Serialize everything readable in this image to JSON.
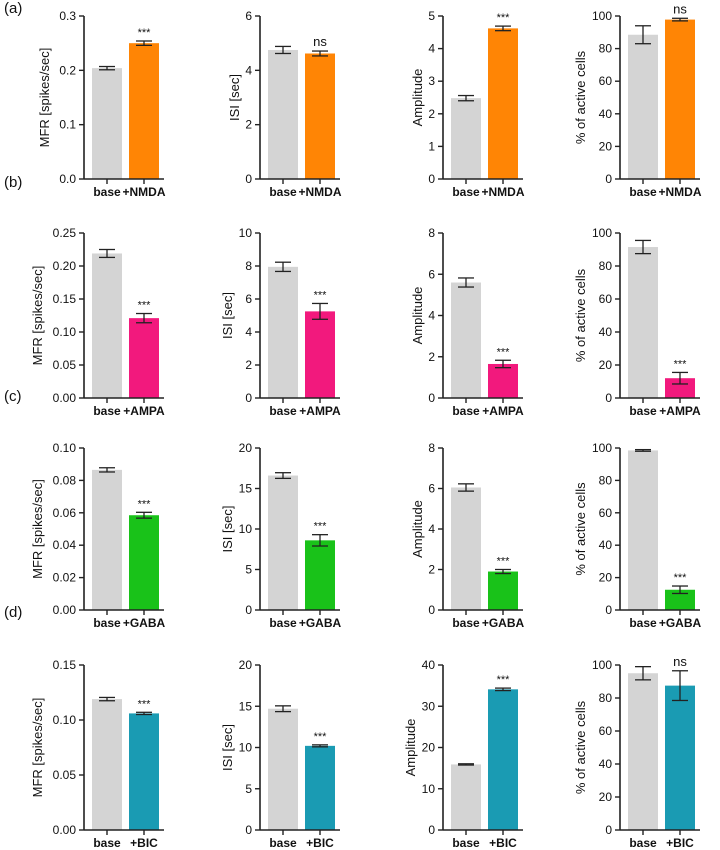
{
  "colors": {
    "base": "#d4d4d4",
    "NMDA": "#ff8505",
    "AMPA": "#f2197d",
    "GABA": "#19c219",
    "BIC": "#1a9bb3",
    "axis": "#222222"
  },
  "rows": [
    {
      "label": "(a)",
      "color_key": "NMDA"
    },
    {
      "label": "(b)",
      "color_key": "AMPA"
    },
    {
      "label": "(c)",
      "color_key": "GABA"
    },
    {
      "label": "(d)",
      "color_key": "BIC"
    }
  ],
  "chart_data": [
    {
      "type": "bar",
      "row": 0,
      "ylabel": "MFR [spikes/sec]",
      "categories": [
        "base",
        "+NMDA"
      ],
      "values": [
        0.204,
        0.25
      ],
      "errors": [
        0.003,
        0.004
      ],
      "significance": "***",
      "ylim": [
        0,
        0.3
      ],
      "yticks": [
        0.0,
        0.1,
        0.2,
        0.3
      ],
      "tick_labels": [
        "0.0",
        "0.1",
        "0.2",
        "0.3"
      ]
    },
    {
      "type": "bar",
      "row": 0,
      "ylabel": "ISI [sec]",
      "categories": [
        "base",
        "+NMDA"
      ],
      "values": [
        4.75,
        4.62
      ],
      "errors": [
        0.13,
        0.09
      ],
      "significance": "ns",
      "ylim": [
        0,
        6
      ],
      "yticks": [
        0,
        2,
        4,
        6
      ],
      "tick_labels": [
        "0",
        "2",
        "4",
        "6"
      ]
    },
    {
      "type": "bar",
      "row": 0,
      "ylabel": "Amplitude",
      "categories": [
        "base",
        "+NMDA"
      ],
      "values": [
        2.48,
        4.62
      ],
      "errors": [
        0.08,
        0.07
      ],
      "significance": "***",
      "ylim": [
        0,
        5
      ],
      "yticks": [
        0,
        1,
        2,
        3,
        4,
        5
      ],
      "tick_labels": [
        "0",
        "1",
        "2",
        "3",
        "4",
        "5"
      ]
    },
    {
      "type": "bar",
      "row": 0,
      "ylabel": "% of active cells",
      "categories": [
        "base",
        "+NMDA"
      ],
      "values": [
        88.5,
        97.8
      ],
      "errors": [
        5.5,
        0.8
      ],
      "significance": "ns",
      "ylim": [
        0,
        100
      ],
      "yticks": [
        0,
        20,
        40,
        60,
        80,
        100
      ],
      "tick_labels": [
        "0",
        "20",
        "40",
        "60",
        "80",
        "100"
      ]
    },
    {
      "type": "bar",
      "row": 1,
      "ylabel": "MFR [spikes/sec]",
      "categories": [
        "base",
        "+AMPA"
      ],
      "values": [
        0.219,
        0.121
      ],
      "errors": [
        0.006,
        0.007
      ],
      "significance": "***",
      "ylim": [
        0,
        0.25
      ],
      "yticks": [
        0.0,
        0.05,
        0.1,
        0.15,
        0.2,
        0.25
      ],
      "tick_labels": [
        "0.00",
        "0.05",
        "0.10",
        "0.15",
        "0.20",
        "0.25"
      ]
    },
    {
      "type": "bar",
      "row": 1,
      "ylabel": "ISI [sec]",
      "categories": [
        "base",
        "+AMPA"
      ],
      "values": [
        7.95,
        5.25
      ],
      "errors": [
        0.28,
        0.48
      ],
      "significance": "***",
      "ylim": [
        0,
        10
      ],
      "yticks": [
        0,
        2,
        4,
        6,
        8,
        10
      ],
      "tick_labels": [
        "0",
        "2",
        "4",
        "6",
        "8",
        "10"
      ]
    },
    {
      "type": "bar",
      "row": 1,
      "ylabel": "Amplitude",
      "categories": [
        "base",
        "+AMPA"
      ],
      "values": [
        5.6,
        1.65
      ],
      "errors": [
        0.22,
        0.18
      ],
      "significance": "***",
      "ylim": [
        0,
        8
      ],
      "yticks": [
        0,
        2,
        4,
        6,
        8
      ],
      "tick_labels": [
        "0",
        "2",
        "4",
        "6",
        "8"
      ]
    },
    {
      "type": "bar",
      "row": 1,
      "ylabel": "% of active cells",
      "categories": [
        "base",
        "+AMPA"
      ],
      "values": [
        91.5,
        12.0
      ],
      "errors": [
        4.0,
        3.5
      ],
      "significance": "***",
      "ylim": [
        0,
        100
      ],
      "yticks": [
        0,
        20,
        40,
        60,
        80,
        100
      ],
      "tick_labels": [
        "0",
        "20",
        "40",
        "60",
        "80",
        "100"
      ]
    },
    {
      "type": "bar",
      "row": 2,
      "ylabel": "MFR [spikes/sec]",
      "categories": [
        "base",
        "+GABA"
      ],
      "values": [
        0.0865,
        0.0585
      ],
      "errors": [
        0.0013,
        0.0018
      ],
      "significance": "***",
      "ylim": [
        0,
        0.1
      ],
      "yticks": [
        0.0,
        0.02,
        0.04,
        0.06,
        0.08,
        0.1
      ],
      "tick_labels": [
        "0.00",
        "0.02",
        "0.04",
        "0.06",
        "0.08",
        "0.10"
      ]
    },
    {
      "type": "bar",
      "row": 2,
      "ylabel": "ISI [sec]",
      "categories": [
        "base",
        "+GABA"
      ],
      "values": [
        16.6,
        8.6
      ],
      "errors": [
        0.35,
        0.7
      ],
      "significance": "***",
      "ylim": [
        0,
        20
      ],
      "yticks": [
        0,
        5,
        10,
        15,
        20
      ],
      "tick_labels": [
        "0",
        "5",
        "10",
        "15",
        "20"
      ]
    },
    {
      "type": "bar",
      "row": 2,
      "ylabel": "Amplitude",
      "categories": [
        "base",
        "+GABA"
      ],
      "values": [
        6.05,
        1.9
      ],
      "errors": [
        0.18,
        0.1
      ],
      "significance": "***",
      "ylim": [
        0,
        8
      ],
      "yticks": [
        0,
        2,
        4,
        6,
        8
      ],
      "tick_labels": [
        "0",
        "2",
        "4",
        "6",
        "8"
      ]
    },
    {
      "type": "bar",
      "row": 2,
      "ylabel": "% of active cells",
      "categories": [
        "base",
        "+GABA"
      ],
      "values": [
        98.5,
        12.5
      ],
      "errors": [
        0.5,
        2.3
      ],
      "significance": "***",
      "ylim": [
        0,
        100
      ],
      "yticks": [
        0,
        20,
        40,
        60,
        80,
        100
      ],
      "tick_labels": [
        "0",
        "20",
        "40",
        "60",
        "80",
        "100"
      ]
    },
    {
      "type": "bar",
      "row": 3,
      "ylabel": "MFR [spikes/sec]",
      "categories": [
        "base",
        "+BIC"
      ],
      "values": [
        0.119,
        0.106
      ],
      "errors": [
        0.0015,
        0.001
      ],
      "significance": "***",
      "ylim": [
        0,
        0.15
      ],
      "yticks": [
        0.0,
        0.05,
        0.1,
        0.15
      ],
      "tick_labels": [
        "0.00",
        "0.05",
        "0.10",
        "0.15"
      ]
    },
    {
      "type": "bar",
      "row": 3,
      "ylabel": "ISI [sec]",
      "categories": [
        "base",
        "+BIC"
      ],
      "values": [
        14.7,
        10.2
      ],
      "errors": [
        0.35,
        0.12
      ],
      "significance": "***",
      "ylim": [
        0,
        20
      ],
      "yticks": [
        0,
        5,
        10,
        15,
        20
      ],
      "tick_labels": [
        "0",
        "5",
        "10",
        "15",
        "20"
      ]
    },
    {
      "type": "bar",
      "row": 3,
      "ylabel": "Amplitude",
      "categories": [
        "base",
        "+BIC"
      ],
      "values": [
        15.9,
        34.1
      ],
      "errors": [
        0.15,
        0.3
      ],
      "significance": "***",
      "ylim": [
        0,
        40
      ],
      "yticks": [
        0,
        10,
        20,
        30,
        40
      ],
      "tick_labels": [
        "0",
        "10",
        "20",
        "30",
        "40"
      ]
    },
    {
      "type": "bar",
      "row": 3,
      "ylabel": "% of active cells",
      "categories": [
        "base",
        "+BIC"
      ],
      "values": [
        95.0,
        87.5
      ],
      "errors": [
        4.0,
        9.0
      ],
      "significance": "ns",
      "ylim": [
        0,
        100
      ],
      "yticks": [
        0,
        20,
        40,
        60,
        80,
        100
      ],
      "tick_labels": [
        "0",
        "20",
        "40",
        "60",
        "80",
        "100"
      ]
    }
  ]
}
